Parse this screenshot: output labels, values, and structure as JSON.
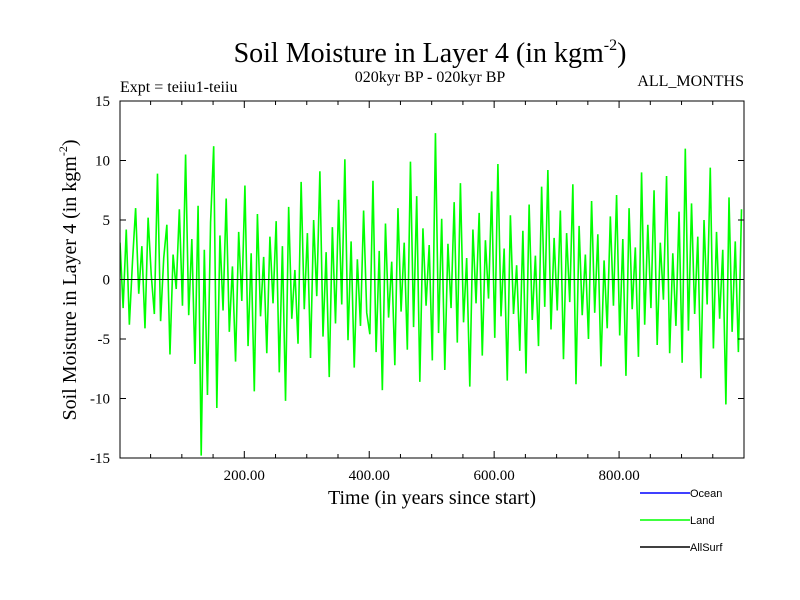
{
  "chart_data": {
    "type": "line",
    "title": "Soil Moisture in Layer 4 (in kgm",
    "title_sup": "-2",
    "title_end": ")",
    "subtitle_left": "Expt = teiiu1-teiiu",
    "subtitle_center": "020kyr BP - 020kyr BP",
    "subtitle_right": "ALL_MONTHS",
    "xlabel": "Time (in years since start)",
    "ylabel": "Soil Moisture in Layer 4 (in kgm",
    "ylabel_sup": "-2",
    "ylabel_end": ")",
    "xlim": [
      1,
      1000
    ],
    "ylim": [
      -15,
      15
    ],
    "x_ticks": [
      200,
      400,
      600,
      800
    ],
    "x_tick_labels": [
      "200.00",
      "400.00",
      "600.00",
      "800.00"
    ],
    "y_ticks": [
      -15,
      -10,
      -5,
      0,
      5,
      10,
      15
    ],
    "y_tick_labels": [
      "-15",
      "-10",
      "-5",
      "0",
      "5",
      "10",
      "15"
    ],
    "legend_position": "bottom-right",
    "series": [
      {
        "name": "Ocean",
        "color": "#0000ff",
        "values": []
      },
      {
        "name": "Land",
        "color": "#00ff00",
        "x_start": 1,
        "x_step": 5,
        "values": [
          3.1,
          -2.4,
          4.2,
          -3.8,
          1.5,
          6.0,
          -1.2,
          2.8,
          -4.1,
          5.2,
          0.4,
          -2.9,
          8.9,
          -3.5,
          1.8,
          4.6,
          -6.3,
          2.1,
          -0.8,
          5.9,
          -2.2,
          10.5,
          -3.0,
          3.4,
          -7.1,
          6.2,
          -14.8,
          2.5,
          -9.7,
          4.8,
          11.2,
          -10.8,
          3.7,
          -2.6,
          6.8,
          -4.4,
          1.1,
          -6.9,
          4.0,
          -1.8,
          7.9,
          -5.6,
          2.2,
          -9.4,
          5.5,
          -3.1,
          1.9,
          -6.2,
          3.6,
          -2.0,
          4.9,
          -7.8,
          2.8,
          -10.2,
          6.1,
          -3.3,
          0.8,
          -5.4,
          8.2,
          -2.5,
          3.9,
          -6.6,
          5.0,
          -1.4,
          9.1,
          -4.8,
          2.3,
          -8.2,
          4.4,
          -3.7,
          6.7,
          -2.1,
          10.1,
          -5.1,
          3.2,
          -7.4,
          1.7,
          -3.9,
          5.8,
          -2.8,
          -4.6,
          8.3,
          -6.1,
          2.4,
          -9.3,
          4.7,
          -3.2,
          1.5,
          -7.2,
          6.0,
          -2.7,
          3.1,
          -5.9,
          9.9,
          -4.0,
          7.0,
          -8.6,
          4.3,
          -2.2,
          2.9,
          -6.8,
          12.3,
          -4.5,
          5.1,
          -7.6,
          3.0,
          -2.4,
          6.5,
          -5.3,
          8.1,
          -3.6,
          1.8,
          -9.0,
          4.2,
          -2.0,
          5.6,
          -6.4,
          3.3,
          -1.6,
          7.4,
          -4.9,
          9.7,
          -3.1,
          2.6,
          -8.5,
          5.4,
          -2.9,
          1.2,
          -6.0,
          4.1,
          -7.9,
          6.3,
          -3.4,
          2.0,
          -5.6,
          7.8,
          -2.3,
          9.2,
          -4.2,
          3.5,
          -2.6,
          5.8,
          -6.7,
          3.9,
          -1.9,
          8.0,
          -8.8,
          4.5,
          -3.0,
          2.1,
          -5.0,
          6.6,
          -2.8,
          3.8,
          -7.3,
          1.6,
          -4.1,
          5.3,
          -2.2,
          7.1,
          -4.7,
          3.4,
          -8.1,
          6.0,
          -2.5,
          2.7,
          -6.5,
          9.0,
          -3.8,
          4.6,
          -2.4,
          7.5,
          -5.5,
          3.1,
          -1.7,
          8.7,
          -6.2,
          2.2,
          -3.9,
          5.7,
          -7.0,
          11.0,
          -4.3,
          6.4,
          -2.9,
          3.6,
          -8.3,
          5.0,
          -2.1,
          9.4,
          -5.8,
          4.0,
          -3.3,
          2.5,
          -10.5,
          6.9,
          -4.4,
          3.2,
          -6.1,
          5.9
        ]
      },
      {
        "name": "AllSurf",
        "color": "#000000",
        "values": []
      }
    ]
  }
}
